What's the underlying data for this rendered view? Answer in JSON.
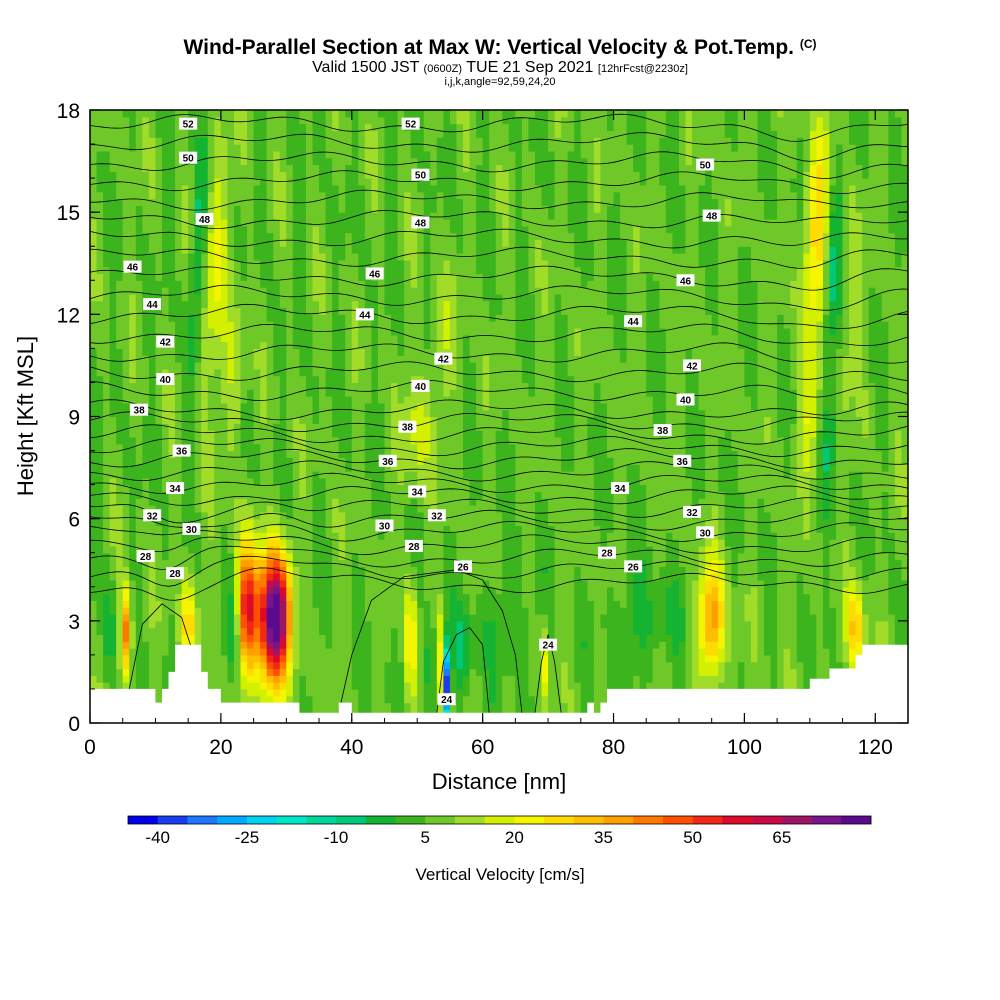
{
  "title": {
    "main": "Wind-Parallel Section at Max W: Vertical Velocity & Pot.Temp.",
    "main_unit": "(C)",
    "valid_prefix": "Valid 1500 JST",
    "valid_z": "(0600Z)",
    "valid_date": "TUE 21 Sep 2021",
    "fcst": "[12hrFcst@2230z]",
    "indices": "i,j,k,angle=92,59,24,20"
  },
  "chart_data": {
    "type": "heatmap",
    "xlabel": "Distance [nm]",
    "ylabel": "Height [Kft MSL]",
    "xlim": [
      0,
      125
    ],
    "ylim": [
      0,
      18
    ],
    "xticks": [
      "0",
      "20",
      "40",
      "60",
      "80",
      "100",
      "120"
    ],
    "yticks": [
      "0",
      "3",
      "6",
      "9",
      "12",
      "15",
      "18"
    ],
    "colorbar": {
      "title": "Vertical Velocity [cm/s]",
      "min": -45,
      "max": 80,
      "step": 5,
      "tick_labels": [
        "-40",
        "-25",
        "-10",
        "5",
        "20",
        "35",
        "50",
        "65"
      ],
      "tick_values": [
        -40,
        -25,
        -10,
        5,
        20,
        35,
        50,
        65
      ],
      "colors": [
        "#0000e6",
        "#1a3cf0",
        "#1e78ff",
        "#00a8ff",
        "#00d2f0",
        "#00e6c8",
        "#00d79b",
        "#00c878",
        "#14b432",
        "#3cb41e",
        "#6ec828",
        "#a0dc28",
        "#d2f000",
        "#f5f500",
        "#ffdc00",
        "#ffbe00",
        "#ffa000",
        "#ff7800",
        "#ff5000",
        "#f02814",
        "#dc0a28",
        "#c80a46",
        "#a01464",
        "#78148c",
        "#5a0a8c"
      ]
    },
    "theta_contours": {
      "unit": "C",
      "levels": [
        24,
        25,
        26,
        27,
        28,
        29,
        30,
        31,
        32,
        33,
        34,
        35,
        36,
        37,
        38,
        39,
        40,
        41,
        42,
        43,
        44,
        45,
        46,
        47,
        48,
        49,
        50,
        51,
        52,
        53
      ],
      "labels": [
        {
          "text": "52",
          "x": 15,
          "y": 17.6
        },
        {
          "text": "52",
          "x": 49,
          "y": 17.6
        },
        {
          "text": "50",
          "x": 15,
          "y": 16.6
        },
        {
          "text": "50",
          "x": 50.5,
          "y": 16.1
        },
        {
          "text": "50",
          "x": 94,
          "y": 16.4
        },
        {
          "text": "48",
          "x": 17.5,
          "y": 14.8
        },
        {
          "text": "48",
          "x": 50.5,
          "y": 14.7
        },
        {
          "text": "48",
          "x": 95,
          "y": 14.9
        },
        {
          "text": "46",
          "x": 6.5,
          "y": 13.4
        },
        {
          "text": "46",
          "x": 43.5,
          "y": 13.2
        },
        {
          "text": "46",
          "x": 91,
          "y": 13.0
        },
        {
          "text": "44",
          "x": 9.5,
          "y": 12.3
        },
        {
          "text": "44",
          "x": 42,
          "y": 12.0
        },
        {
          "text": "44",
          "x": 83,
          "y": 11.8
        },
        {
          "text": "42",
          "x": 11.5,
          "y": 11.2
        },
        {
          "text": "42",
          "x": 54,
          "y": 10.7
        },
        {
          "text": "42",
          "x": 92,
          "y": 10.5
        },
        {
          "text": "40",
          "x": 11.5,
          "y": 10.1
        },
        {
          "text": "40",
          "x": 50.5,
          "y": 9.9
        },
        {
          "text": "40",
          "x": 91,
          "y": 9.5
        },
        {
          "text": "38",
          "x": 7.5,
          "y": 9.2
        },
        {
          "text": "38",
          "x": 48.5,
          "y": 8.7
        },
        {
          "text": "38",
          "x": 87.5,
          "y": 8.6
        },
        {
          "text": "36",
          "x": 14,
          "y": 8.0
        },
        {
          "text": "36",
          "x": 45.5,
          "y": 7.7
        },
        {
          "text": "36",
          "x": 90.5,
          "y": 7.7
        },
        {
          "text": "34",
          "x": 13,
          "y": 6.9
        },
        {
          "text": "34",
          "x": 50,
          "y": 6.8
        },
        {
          "text": "34",
          "x": 81,
          "y": 6.9
        },
        {
          "text": "32",
          "x": 9.5,
          "y": 6.1
        },
        {
          "text": "32",
          "x": 53,
          "y": 6.1
        },
        {
          "text": "32",
          "x": 92,
          "y": 6.2
        },
        {
          "text": "30",
          "x": 15.5,
          "y": 5.7
        },
        {
          "text": "30",
          "x": 45,
          "y": 5.8
        },
        {
          "text": "30",
          "x": 94,
          "y": 5.6
        },
        {
          "text": "28",
          "x": 8.5,
          "y": 4.9
        },
        {
          "text": "28",
          "x": 13,
          "y": 4.4
        },
        {
          "text": "28",
          "x": 49.5,
          "y": 5.2
        },
        {
          "text": "28",
          "x": 79,
          "y": 5.0
        },
        {
          "text": "26",
          "x": 57,
          "y": 4.6
        },
        {
          "text": "26",
          "x": 83,
          "y": 4.6
        },
        {
          "text": "24",
          "x": 70,
          "y": 2.3
        },
        {
          "text": "24",
          "x": 54.5,
          "y": 0.7
        }
      ]
    },
    "features": [
      {
        "kind": "updraft",
        "x": 28,
        "z": 3.0,
        "max_w": 80
      },
      {
        "kind": "updraft",
        "x": 24,
        "z": 3.4,
        "max_w": 50
      },
      {
        "kind": "updraft",
        "x": 95,
        "z": 3.0,
        "max_w": 35
      },
      {
        "kind": "updraft",
        "x": 111,
        "z": 14.5,
        "max_w": 25
      },
      {
        "kind": "downdraft",
        "x": 54.5,
        "z": 1.0,
        "min_w": -40
      }
    ],
    "terrain_kft": [
      [
        0,
        1.0
      ],
      [
        5,
        1.0
      ],
      [
        10,
        1.0
      ],
      [
        10,
        0.6
      ],
      [
        11,
        0.6
      ],
      [
        11,
        1.0
      ],
      [
        12,
        1.0
      ],
      [
        12,
        1.5
      ],
      [
        13,
        1.5
      ],
      [
        13,
        2.3
      ],
      [
        17,
        2.3
      ],
      [
        17,
        1.5
      ],
      [
        18,
        1.5
      ],
      [
        18,
        1.0
      ],
      [
        20,
        1.0
      ],
      [
        20,
        0.6
      ],
      [
        32,
        0.6
      ],
      [
        32,
        0.3
      ],
      [
        38,
        0.3
      ],
      [
        38,
        0.6
      ],
      [
        40,
        0.6
      ],
      [
        40,
        0.3
      ],
      [
        76,
        0.3
      ],
      [
        76,
        0.6
      ],
      [
        77,
        0.6
      ],
      [
        77,
        0.3
      ],
      [
        78,
        0.3
      ],
      [
        78,
        0.6
      ],
      [
        79,
        0.6
      ],
      [
        79,
        1.0
      ],
      [
        110,
        1.0
      ],
      [
        110,
        1.3
      ],
      [
        113,
        1.3
      ],
      [
        113,
        1.6
      ],
      [
        117,
        1.6
      ],
      [
        117,
        2.0
      ],
      [
        118,
        2.0
      ],
      [
        118,
        2.3
      ],
      [
        125,
        2.3
      ]
    ]
  }
}
